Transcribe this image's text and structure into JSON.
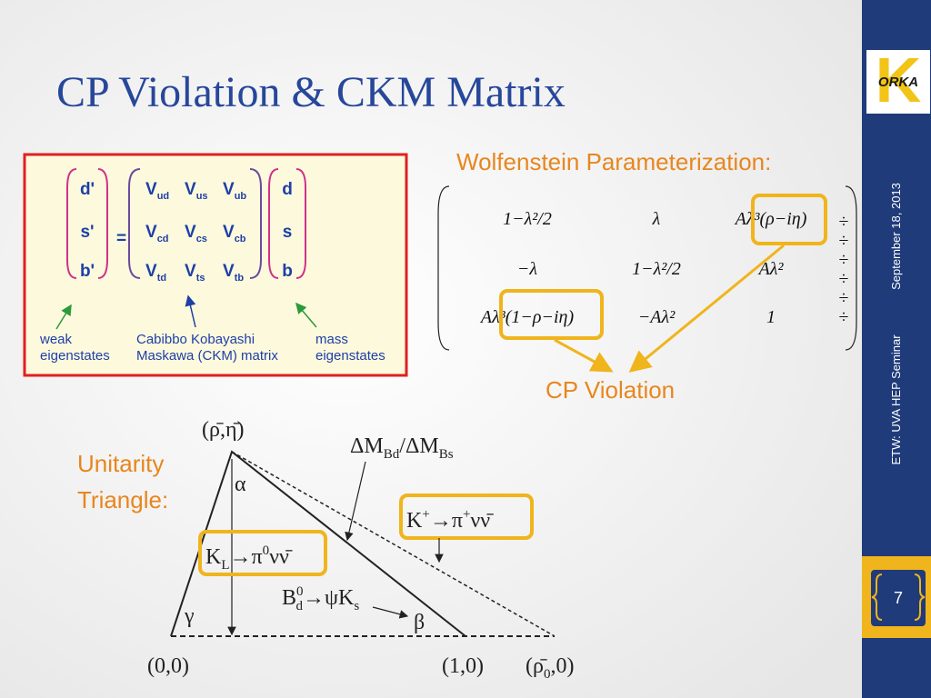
{
  "title": "CP Violation & CKM Matrix",
  "sidebar": {
    "logo": "ORKA",
    "logo_letter": "K",
    "date": "September 18, 2013",
    "event": "ETW: UVA HEP Seminar",
    "page": "7"
  },
  "ckm_box": {
    "left_vector": [
      "d'",
      "s'",
      "b'"
    ],
    "equals": "=",
    "matrix": [
      [
        {
          "main": "V",
          "sub": "ud"
        },
        {
          "main": "V",
          "sub": "us"
        },
        {
          "main": "V",
          "sub": "ub"
        }
      ],
      [
        {
          "main": "V",
          "sub": "cd"
        },
        {
          "main": "V",
          "sub": "cs"
        },
        {
          "main": "V",
          "sub": "cb"
        }
      ],
      [
        {
          "main": "V",
          "sub": "td"
        },
        {
          "main": "V",
          "sub": "ts"
        },
        {
          "main": "V",
          "sub": "tb"
        }
      ]
    ],
    "right_vector": [
      "d",
      "s",
      "b"
    ],
    "weak_label": [
      "weak",
      "eigenstates"
    ],
    "ckm_label": [
      "Cabibbo Kobayashi",
      "Maskawa (CKM) matrix"
    ],
    "mass_label": [
      "mass",
      "eigenstates"
    ]
  },
  "wolfenstein": {
    "heading": "Wolfenstein Parameterization:",
    "matrix": [
      [
        "1−λ²/2",
        "λ",
        "Aλ³(ρ−iη)"
      ],
      [
        "−λ",
        "1−λ²/2",
        "Aλ²"
      ],
      [
        "Aλ³(1−ρ−iη)",
        "−Aλ²",
        "1"
      ]
    ],
    "side_marks": [
      "÷",
      "÷",
      "÷",
      "÷",
      "÷",
      "÷"
    ]
  },
  "cp_violation": "CP Violation",
  "unitarity": {
    "label": [
      "Unitarity",
      "Triangle:"
    ],
    "apex": "(ρ̄,η̄)",
    "alpha": "α",
    "gamma": "γ",
    "beta": "β",
    "origin": "(0,0)",
    "one": "(1,0)",
    "rho0": [
      "(ρ̄",
      "0",
      ",0)"
    ],
    "dm": [
      "ΔM",
      "Bd",
      "/ΔM",
      "Bs"
    ],
    "kplus": [
      "K",
      "+",
      "→π",
      "+",
      "νν̄"
    ],
    "klong": [
      "K",
      "L",
      "→π",
      "0",
      "νν̄"
    ],
    "bpsik": [
      "B",
      "0",
      "d",
      "→ψK",
      "s"
    ]
  }
}
